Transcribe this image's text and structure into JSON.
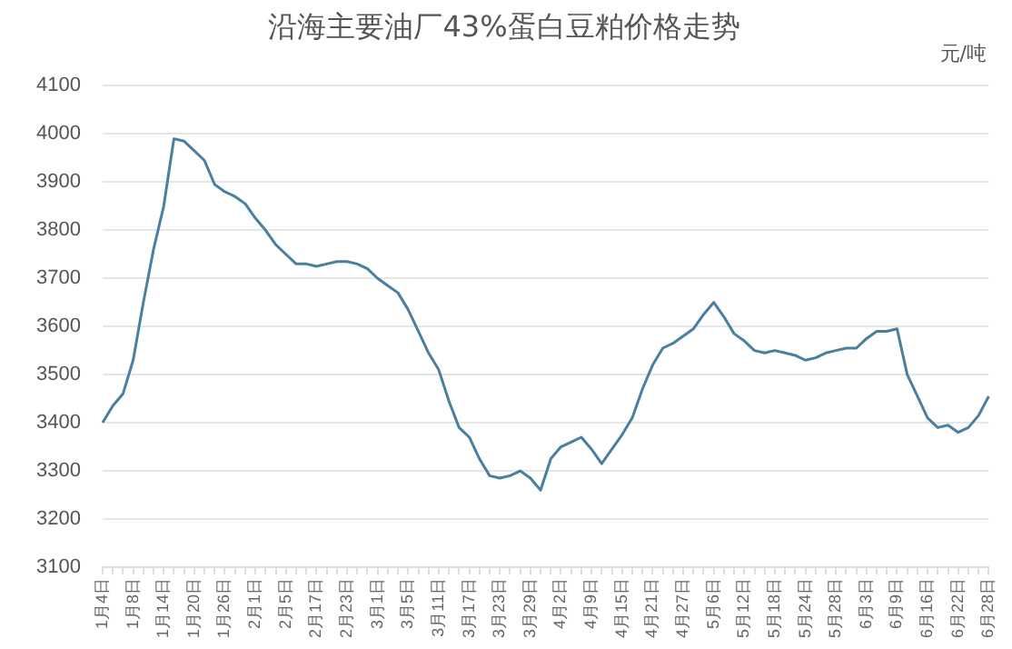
{
  "chart_data": {
    "type": "line",
    "title": "沿海主要油厂43%蛋白豆粕价格走势",
    "ylabel": "元/吨",
    "categories": [
      "1月4日",
      null,
      null,
      "1月8日",
      null,
      null,
      "1月14日",
      null,
      null,
      "1月20日",
      null,
      null,
      "1月26日",
      null,
      null,
      "2月1日",
      null,
      null,
      "2月5日",
      null,
      null,
      "2月17日",
      null,
      null,
      "2月23日",
      null,
      null,
      "3月1日",
      null,
      null,
      "3月5日",
      null,
      null,
      "3月11日",
      null,
      null,
      "3月17日",
      null,
      null,
      "3月23日",
      null,
      null,
      "3月29日",
      null,
      null,
      "4月2日",
      null,
      null,
      "4月9日",
      null,
      null,
      "4月15日",
      null,
      null,
      "4月21日",
      null,
      null,
      "4月27日",
      null,
      null,
      "5月6日",
      null,
      null,
      "5月12日",
      null,
      null,
      "5月18日",
      null,
      null,
      "5月24日",
      null,
      null,
      "5月28日",
      null,
      null,
      "6月3日",
      null,
      null,
      "6月9日",
      null,
      null,
      "6月16日",
      null,
      null,
      "6月22日",
      null,
      null,
      "6月28日"
    ],
    "series": [
      {
        "color": "#4a7f9f",
        "values": [
          3400,
          3435,
          3460,
          3530,
          3650,
          3760,
          3850,
          3990,
          3985,
          3965,
          3945,
          3895,
          3880,
          3870,
          3855,
          3825,
          3800,
          3770,
          3750,
          3730,
          3730,
          3725,
          3730,
          3735,
          3735,
          3730,
          3720,
          3700,
          3685,
          3670,
          3635,
          3590,
          3545,
          3510,
          3445,
          3390,
          3370,
          3325,
          3290,
          3285,
          3290,
          3300,
          3285,
          3260,
          3325,
          3350,
          3360,
          3370,
          3345,
          3315,
          3345,
          3375,
          3410,
          3470,
          3520,
          3555,
          3565,
          3580,
          3595,
          3625,
          3650,
          3620,
          3585,
          3570,
          3550,
          3545,
          3550,
          3545,
          3540,
          3530,
          3535,
          3545,
          3550,
          3555,
          3555,
          3575,
          3590,
          3590,
          3595,
          3500,
          3455,
          3410,
          3390,
          3395,
          3380,
          3390,
          3415,
          3455
        ]
      }
    ],
    "ylim": [
      3100,
      4100
    ],
    "yticks": [
      3100,
      3200,
      3300,
      3400,
      3500,
      3600,
      3700,
      3800,
      3900,
      4000,
      4100
    ],
    "grid": "y",
    "legend": false,
    "marker": "none",
    "line_style": "solid"
  }
}
